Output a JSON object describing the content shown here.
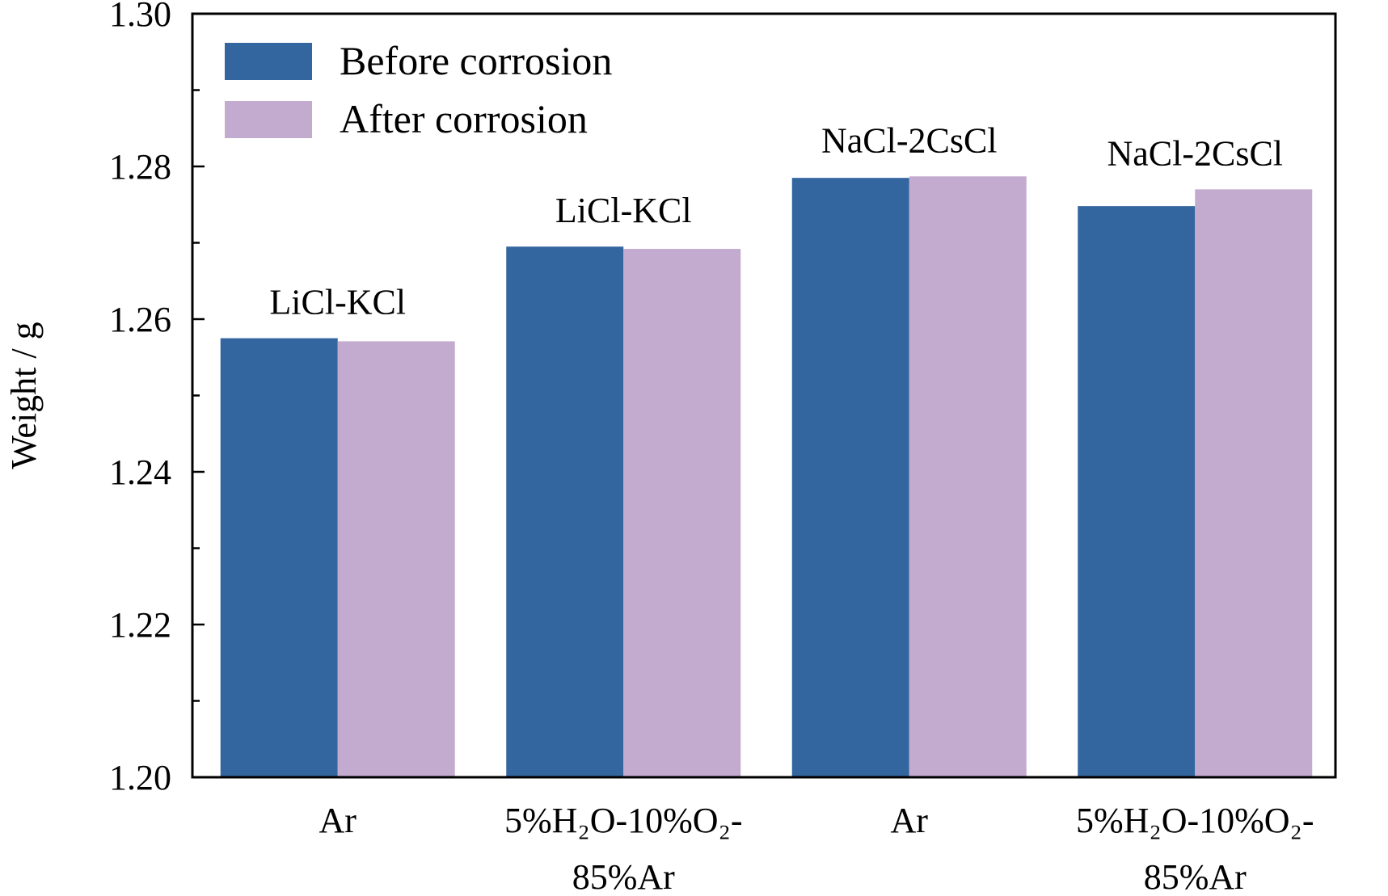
{
  "chart_data": {
    "type": "bar",
    "ylabel": "Weight / g",
    "ylim": [
      1.2,
      1.3
    ],
    "y_ticks": [
      "1.20",
      "1.22",
      "1.24",
      "1.26",
      "1.28",
      "1.30"
    ],
    "y_minor_step": 0.01,
    "categories": [
      {
        "lines": [
          "Ar"
        ],
        "sub": []
      },
      {
        "lines": [
          "5%H₂O-10%O₂-",
          "85%Ar"
        ]
      },
      {
        "lines": [
          "Ar"
        ]
      },
      {
        "lines": [
          "5%H₂O-10%O₂-",
          "85%Ar"
        ]
      }
    ],
    "group_labels": [
      "LiCl-KCl",
      "LiCl-KCl",
      "NaCl-2CsCl",
      "NaCl-2CsCl"
    ],
    "series": [
      {
        "name": "Before corrosion",
        "color": "#33659e",
        "values": [
          1.2575,
          1.2695,
          1.2785,
          1.2748
        ]
      },
      {
        "name": "After corrosion",
        "color": "#c3abd0",
        "values": [
          1.2571,
          1.2692,
          1.2787,
          1.277
        ]
      }
    ],
    "legend_position": "top-left",
    "grid": false
  }
}
